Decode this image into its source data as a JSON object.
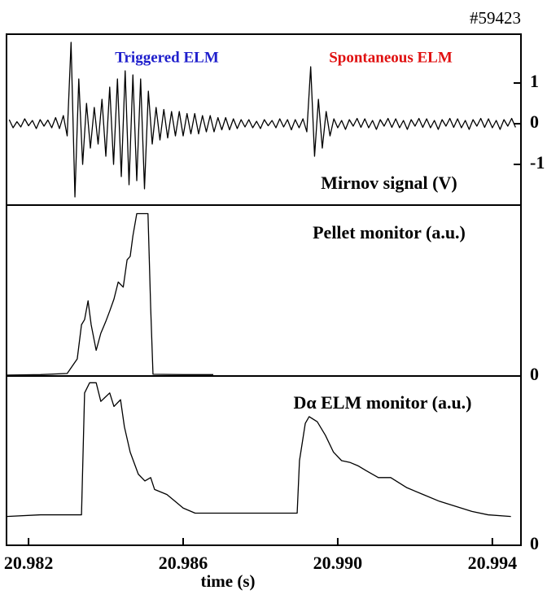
{
  "chart_data": [
    {
      "type": "line",
      "title": "#59423",
      "annotations": [
        {
          "text": "Triggered ELM",
          "color": "#1f1fcc"
        },
        {
          "text": "Spontaneous ELM",
          "color": "#e01010"
        },
        {
          "text": "Mirnov signal  (V)",
          "color": "#000000"
        }
      ],
      "color": "#000000",
      "xlim": [
        20.98143,
        20.99474
      ],
      "ylim": [
        -2,
        2.2
      ],
      "yticks": [
        -1,
        0,
        1
      ],
      "x": [
        20.9815,
        20.9816,
        20.9817,
        20.9818,
        20.9819,
        20.982,
        20.9821,
        20.9822,
        20.9823,
        20.9824,
        20.9825,
        20.9826,
        20.9827,
        20.9828,
        20.9829,
        20.983,
        20.9831,
        20.9832,
        20.9833,
        20.9834,
        20.9835,
        20.9836,
        20.9837,
        20.9838,
        20.9839,
        20.984,
        20.9841,
        20.9842,
        20.9843,
        20.9844,
        20.9845,
        20.9846,
        20.9847,
        20.9848,
        20.9849,
        20.985,
        20.9851,
        20.9852,
        20.9853,
        20.9854,
        20.9855,
        20.9856,
        20.9857,
        20.9858,
        20.9859,
        20.986,
        20.9861,
        20.9862,
        20.9863,
        20.9864,
        20.9865,
        20.9866,
        20.9867,
        20.9868,
        20.9869,
        20.987,
        20.9871,
        20.9872,
        20.9873,
        20.9874,
        20.9875,
        20.9876,
        20.9877,
        20.9878,
        20.9879,
        20.988,
        20.9881,
        20.9882,
        20.9883,
        20.9884,
        20.9885,
        20.9886,
        20.9887,
        20.9888,
        20.9889,
        20.989,
        20.9891,
        20.9892,
        20.9893,
        20.9894,
        20.9895,
        20.9896,
        20.9897,
        20.9898,
        20.9899,
        20.99,
        20.9901,
        20.9902,
        20.9903,
        20.9904,
        20.9905,
        20.9906,
        20.9907,
        20.9908,
        20.9909,
        20.991,
        20.9911,
        20.9912,
        20.9913,
        20.9914,
        20.9915,
        20.9916,
        20.9917,
        20.9918,
        20.9919,
        20.992,
        20.9921,
        20.9922,
        20.9923,
        20.9924,
        20.9925,
        20.9926,
        20.9927,
        20.9928,
        20.9929,
        20.993,
        20.9931,
        20.9932,
        20.9933,
        20.9934,
        20.9935,
        20.9936,
        20.9937,
        20.9938,
        20.9939,
        20.994,
        20.9941,
        20.9942,
        20.9943,
        20.9944,
        20.9945,
        20.9946
      ],
      "values": [
        0.1,
        -0.1,
        0.05,
        -0.08,
        0.12,
        -0.05,
        0.08,
        -0.12,
        0.1,
        -0.06,
        0.09,
        -0.1,
        0.15,
        -0.12,
        0.2,
        -0.3,
        2.0,
        -1.8,
        1.1,
        -1.0,
        0.5,
        -0.6,
        0.4,
        -0.5,
        0.6,
        -0.8,
        0.9,
        -1.0,
        1.1,
        -1.3,
        1.3,
        -1.5,
        1.2,
        -1.4,
        1.1,
        -1.6,
        0.8,
        -0.5,
        0.4,
        -0.4,
        0.35,
        -0.35,
        0.3,
        -0.3,
        0.3,
        -0.3,
        0.25,
        -0.25,
        0.25,
        -0.25,
        0.2,
        -0.2,
        0.2,
        -0.2,
        0.15,
        -0.15,
        0.15,
        -0.15,
        0.12,
        -0.12,
        0.1,
        -0.08,
        0.1,
        -0.1,
        0.06,
        -0.12,
        0.1,
        -0.05,
        0.08,
        -0.1,
        0.12,
        -0.08,
        0.1,
        -0.15,
        0.1,
        -0.1,
        0.12,
        -0.2,
        1.4,
        -0.8,
        0.6,
        -0.6,
        0.3,
        -0.3,
        0.12,
        -0.1,
        0.08,
        -0.14,
        0.1,
        -0.06,
        0.13,
        -0.09,
        0.12,
        -0.1,
        0.08,
        -0.14,
        0.1,
        -0.06,
        0.13,
        -0.09,
        0.12,
        -0.1,
        0.08,
        -0.14,
        0.1,
        -0.06,
        0.13,
        -0.09,
        0.12,
        -0.1,
        0.08,
        -0.14,
        0.1,
        -0.06,
        0.13,
        -0.09,
        0.12,
        -0.1,
        0.08,
        -0.14,
        0.1,
        -0.06,
        0.13,
        -0.09,
        0.12,
        -0.1,
        0.08,
        -0.14,
        0.1,
        -0.06,
        0.13,
        -0.09
      ]
    },
    {
      "type": "line",
      "annotations": [
        {
          "text": "Pellet monitor (a.u.)",
          "color": "#000000"
        }
      ],
      "color": "#000000",
      "xlim": [
        20.98143,
        20.99474
      ],
      "ylim": [
        0,
        1
      ],
      "yticks": [
        0
      ],
      "x": [
        20.98143,
        20.98231,
        20.983,
        20.98326,
        20.98337,
        20.98345,
        20.98354,
        20.98362,
        20.98375,
        20.98387,
        20.984,
        20.9841,
        20.98421,
        20.98432,
        20.98445,
        20.98455,
        20.98463,
        20.9847,
        20.9848,
        20.9849,
        20.985,
        20.98509,
        20.98516,
        20.98522,
        20.986,
        20.98678
      ],
      "values": [
        0.005,
        0.008,
        0.015,
        0.1,
        0.3,
        0.33,
        0.44,
        0.3,
        0.15,
        0.25,
        0.32,
        0.38,
        0.45,
        0.55,
        0.52,
        0.68,
        0.7,
        0.82,
        0.95,
        0.95,
        0.95,
        0.95,
        0.4,
        0.01,
        0.008,
        0.008
      ]
    },
    {
      "type": "line",
      "annotations": [
        {
          "text": "Dα ELM monitor (a.u.)",
          "color": "#000000"
        }
      ],
      "color": "#000000",
      "xlim": [
        20.98143,
        20.99474
      ],
      "ylim": [
        0,
        1
      ],
      "yticks": [
        0
      ],
      "xticks": [
        20.982,
        20.986,
        {
          "value": 20.99,
          "label": "20.990"
        },
        20.994
      ],
      "xlabel": "time (s)",
      "x": [
        20.98143,
        20.98231,
        20.98337,
        20.98345,
        20.98358,
        20.98375,
        20.98387,
        20.9841,
        20.98421,
        20.98438,
        20.98448,
        20.98463,
        20.98484,
        20.98501,
        20.98516,
        20.98526,
        20.98558,
        20.98579,
        20.986,
        20.98631,
        20.98758,
        20.98884,
        20.98895,
        20.98901,
        20.98916,
        20.98926,
        20.98947,
        20.98968,
        20.98989,
        20.9901,
        20.99031,
        20.99052,
        20.99074,
        20.99105,
        20.99137,
        20.99158,
        20.99179,
        20.99221,
        20.99263,
        20.99305,
        20.99347,
        20.99389,
        20.99448
      ],
      "values": [
        0.17,
        0.18,
        0.18,
        0.9,
        0.96,
        0.96,
        0.85,
        0.9,
        0.82,
        0.86,
        0.7,
        0.55,
        0.42,
        0.38,
        0.4,
        0.33,
        0.3,
        0.26,
        0.22,
        0.19,
        0.19,
        0.19,
        0.19,
        0.5,
        0.72,
        0.76,
        0.73,
        0.65,
        0.55,
        0.5,
        0.49,
        0.47,
        0.44,
        0.4,
        0.4,
        0.37,
        0.34,
        0.3,
        0.26,
        0.23,
        0.2,
        0.18,
        0.17
      ]
    }
  ]
}
